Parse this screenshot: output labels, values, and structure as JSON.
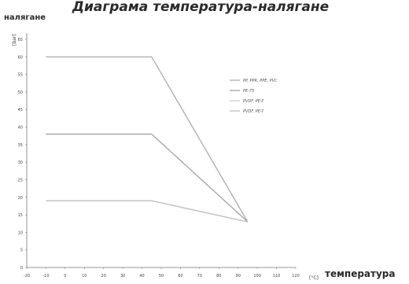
{
  "chart_data": {
    "type": "line",
    "title": "Диаграма температура-налягане",
    "ylabel": "налягане",
    "y_unit": "[bar]",
    "xlabel": "температура",
    "x_unit": "[°C]",
    "xlim": [
      -20,
      120
    ],
    "ylim": [
      0,
      65
    ],
    "xticks": [
      -20,
      -10,
      0,
      10,
      20,
      30,
      40,
      50,
      60,
      70,
      80,
      90,
      100,
      110,
      120
    ],
    "yticks": [
      0,
      5,
      10,
      15,
      20,
      25,
      30,
      35,
      40,
      45,
      50,
      55,
      60,
      65
    ],
    "series": [
      {
        "name": "PP, PPR, PPE, PVC",
        "color": "#b0b0b0",
        "points": [
          [
            -10,
            60
          ],
          [
            45,
            60
          ],
          [
            95,
            13
          ]
        ]
      },
      {
        "name": "PE-75",
        "color": "#a8a8a8",
        "points": [
          [
            -10,
            38
          ],
          [
            45,
            38
          ],
          [
            95,
            13
          ]
        ]
      },
      {
        "name": "PVDF, PE-T",
        "color": "#d0d0d0",
        "points": [
          [
            -10,
            19
          ],
          [
            45,
            19
          ],
          [
            95,
            13
          ]
        ]
      },
      {
        "name": "PVDF, PE-T",
        "color": "#c4c4c4",
        "points": [
          [
            -10,
            19
          ],
          [
            45,
            19
          ],
          [
            95,
            13
          ]
        ]
      }
    ],
    "legend_position": "right",
    "grid": false
  }
}
